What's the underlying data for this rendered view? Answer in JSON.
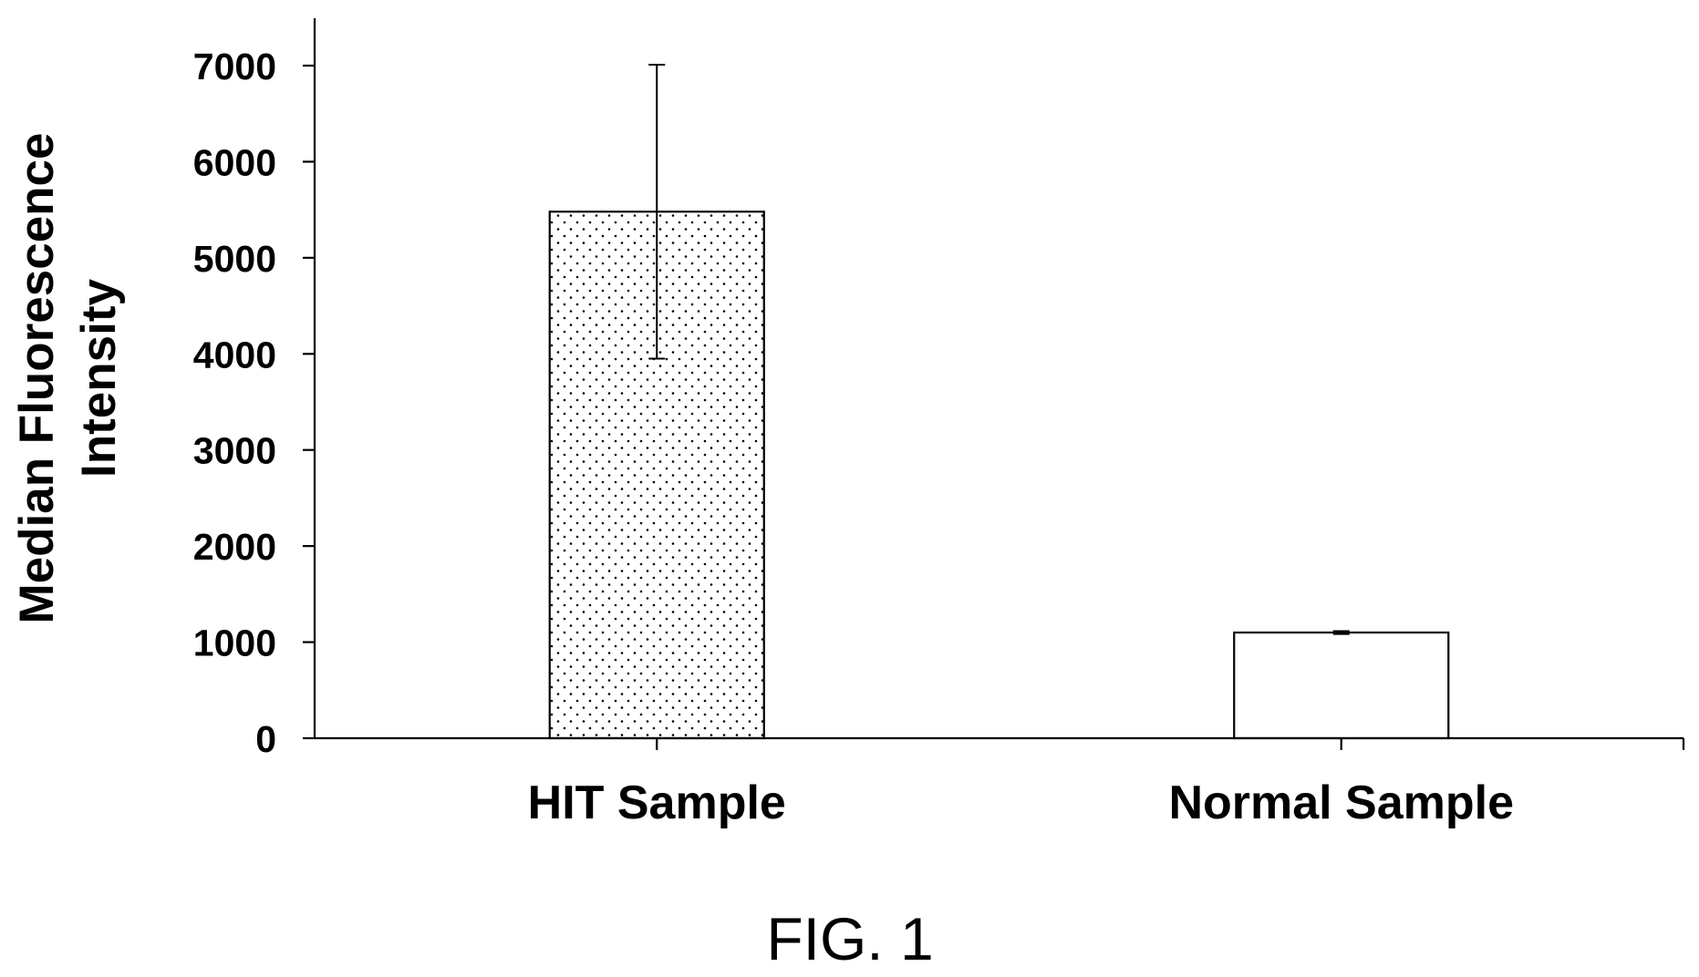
{
  "chart_data": {
    "type": "bar",
    "categories": [
      "HIT Sample",
      "Normal Sample"
    ],
    "values": [
      5480,
      1100
    ],
    "error_bars": [
      {
        "upper": 7010,
        "lower": 3950
      },
      {
        "upper": 1115,
        "lower": 1085
      }
    ],
    "bar_fills": [
      "dotted",
      "white"
    ],
    "ylabel_lines": [
      "Median Fluorescence",
      "Intensity"
    ],
    "xlabel": "",
    "ylim": [
      0,
      7000
    ],
    "yticks": [
      0,
      1000,
      2000,
      3000,
      4000,
      5000,
      6000,
      7000
    ],
    "grid": false
  },
  "figure": {
    "caption": "FIG. 1"
  },
  "colors": {
    "ink": "#000000",
    "background": "#ffffff",
    "bar_fill": "#ffffff"
  }
}
